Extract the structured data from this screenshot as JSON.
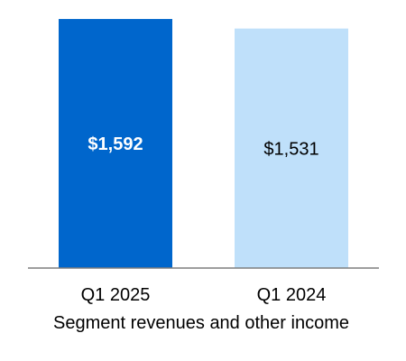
{
  "chart_data": {
    "type": "bar",
    "categories": [
      "Q1 2025",
      "Q1 2024"
    ],
    "values": [
      1592,
      1531
    ],
    "value_labels": [
      "$1,592",
      "$1,531"
    ],
    "xlabel": "Segment revenues and other income",
    "ylim": [
      0,
      1650
    ],
    "grid": false,
    "legend": "none",
    "colors": {
      "bars": [
        "#0066CC",
        "#BFE0FA"
      ],
      "labels": [
        "#FFFFFF",
        "#000000"
      ],
      "baseline": "#7F7F7F"
    }
  }
}
